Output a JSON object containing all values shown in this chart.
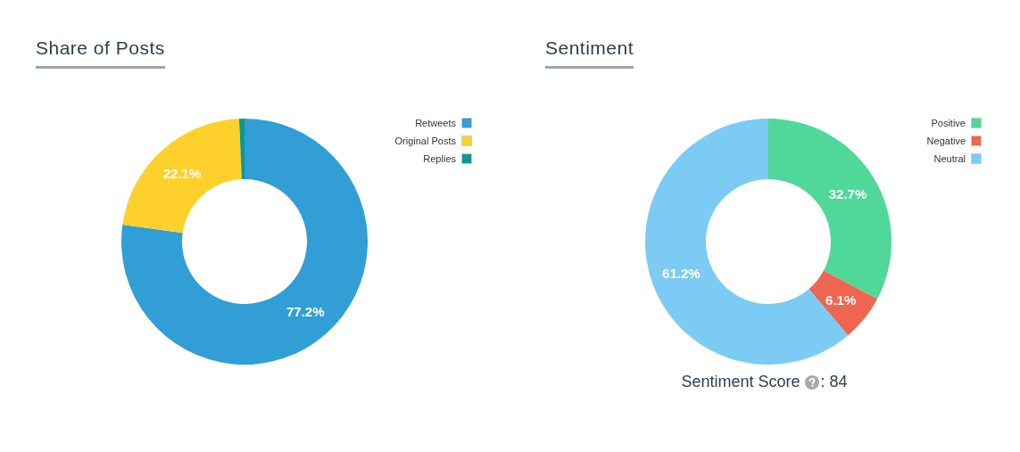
{
  "chart_data": [
    {
      "type": "donut",
      "title": "Share of Posts",
      "categories": [
        "Retweets",
        "Original Posts",
        "Replies"
      ],
      "values": [
        77.2,
        22.1,
        0.7
      ],
      "colors": [
        "#319ed6",
        "#fdd02c",
        "#10968e"
      ],
      "value_labels": [
        "77.2%",
        "22.1%",
        null
      ],
      "legend": "top right"
    },
    {
      "type": "donut",
      "title": "Sentiment",
      "categories": [
        "Positive",
        "Negative",
        "Neutral"
      ],
      "values": [
        32.7,
        6.1,
        61.2
      ],
      "colors": [
        "#4fd897",
        "#ef6650",
        "#7ccbf4"
      ],
      "value_labels": [
        "32.7%",
        "6.1%",
        "61.2%"
      ],
      "legend": "top right",
      "annotations": [
        "Sentiment Score",
        ": 84"
      ]
    }
  ]
}
